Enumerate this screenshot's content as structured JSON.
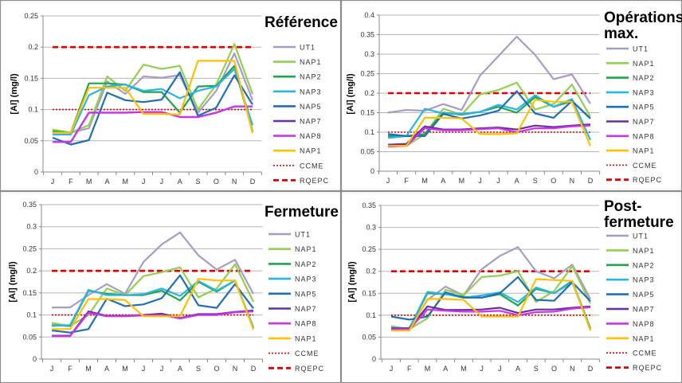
{
  "chart_data": [
    {
      "type": "line",
      "title": "Référence",
      "ylabel": "[Al] (mg/l)",
      "categories": [
        "J",
        "F",
        "M",
        "A",
        "M",
        "J",
        "J",
        "A",
        "S",
        "O",
        "N",
        "D"
      ],
      "ylim": [
        0,
        0.25
      ],
      "yticks": [
        "0",
        "0.05",
        "0.1",
        "0.15",
        "0.2",
        "0.25"
      ],
      "grid": true,
      "legend": "right",
      "series": [
        {
          "name": "UT1",
          "color": "#a99cc4",
          "values": [
            0.065,
            0.063,
            0.07,
            0.145,
            0.125,
            0.153,
            0.151,
            0.155,
            0.095,
            0.13,
            0.19,
            0.115
          ]
        },
        {
          "name": "NAP1",
          "color": "#92d050",
          "values": [
            0.068,
            0.063,
            0.075,
            0.153,
            0.13,
            0.172,
            0.165,
            0.17,
            0.1,
            0.14,
            0.205,
            0.125
          ]
        },
        {
          "name": "NAP2",
          "color": "#1fa64a",
          "values": [
            0.065,
            0.063,
            0.142,
            0.142,
            0.14,
            0.128,
            0.128,
            0.095,
            0.137,
            0.138,
            0.17,
            0.065
          ]
        },
        {
          "name": "NAP3",
          "color": "#29b5e8",
          "values": [
            0.06,
            0.06,
            0.123,
            0.137,
            0.14,
            0.13,
            0.133,
            0.118,
            0.13,
            0.137,
            0.165,
            0.075
          ]
        },
        {
          "name": "NAP5",
          "color": "#1f6fb4",
          "values": [
            0.055,
            0.044,
            0.051,
            0.127,
            0.115,
            0.112,
            0.116,
            0.16,
            0.09,
            0.103,
            0.155,
            0.108
          ]
        },
        {
          "name": "NAP7",
          "color": "#6a2fa0",
          "values": [
            0.048,
            0.048,
            0.095,
            0.095,
            0.095,
            0.096,
            0.096,
            0.088,
            0.088,
            0.095,
            0.105,
            0.105
          ]
        },
        {
          "name": "NAP8",
          "color": "#cc33ee",
          "values": [
            0.048,
            0.048,
            0.095,
            0.095,
            0.095,
            0.096,
            0.096,
            0.088,
            0.088,
            0.095,
            0.105,
            0.105
          ]
        },
        {
          "name": "NAP1",
          "color": "#ffc000",
          "values": [
            0.063,
            0.063,
            0.135,
            0.135,
            0.135,
            0.093,
            0.093,
            0.092,
            0.178,
            0.178,
            0.178,
            0.062
          ]
        }
      ],
      "reference_lines": [
        {
          "name": "CCME",
          "value": 0.1,
          "color": "#e00000",
          "style": "dotted"
        },
        {
          "name": "RQEPC",
          "value": 0.2,
          "color": "#e00000",
          "style": "dashed"
        }
      ]
    },
    {
      "type": "line",
      "title": "Opérations max.",
      "ylabel": "[Al] (mg/l)",
      "categories": [
        "J",
        "F",
        "M",
        "A",
        "M",
        "J",
        "J",
        "A",
        "S",
        "O",
        "N",
        "D"
      ],
      "ylim": [
        0,
        0.4
      ],
      "yticks": [
        "0",
        "0.05",
        "0.1",
        "0.15",
        "0.2",
        "0.25",
        "0.3",
        "0.35",
        "0.4"
      ],
      "grid": true,
      "legend": "right",
      "series": [
        {
          "name": "UT1",
          "color": "#a99cc4",
          "values": [
            0.15,
            0.157,
            0.155,
            0.172,
            0.157,
            0.245,
            0.295,
            0.345,
            0.298,
            0.236,
            0.248,
            0.173
          ]
        },
        {
          "name": "NAP1",
          "color": "#92d050",
          "values": [
            0.065,
            0.065,
            0.095,
            0.16,
            0.145,
            0.197,
            0.208,
            0.227,
            0.158,
            0.172,
            0.222,
            0.14
          ]
        },
        {
          "name": "NAP2",
          "color": "#1fa64a",
          "values": [
            0.09,
            0.09,
            0.095,
            0.15,
            0.145,
            0.152,
            0.165,
            0.15,
            0.19,
            0.165,
            0.18,
            0.135
          ]
        },
        {
          "name": "NAP3",
          "color": "#29b5e8",
          "values": [
            0.085,
            0.09,
            0.16,
            0.148,
            0.147,
            0.152,
            0.17,
            0.158,
            0.195,
            0.165,
            0.185,
            0.08
          ]
        },
        {
          "name": "NAP5",
          "color": "#1f6fb4",
          "values": [
            0.095,
            0.09,
            0.09,
            0.147,
            0.135,
            0.143,
            0.155,
            0.205,
            0.148,
            0.137,
            0.18,
            0.135
          ]
        },
        {
          "name": "NAP7",
          "color": "#6a2fa0",
          "values": [
            0.068,
            0.07,
            0.115,
            0.107,
            0.107,
            0.11,
            0.112,
            0.107,
            0.117,
            0.113,
            0.117,
            0.12
          ]
        },
        {
          "name": "NAP8",
          "color": "#cc33ee",
          "values": [
            0.063,
            0.065,
            0.11,
            0.105,
            0.105,
            0.108,
            0.11,
            0.1,
            0.11,
            0.11,
            0.115,
            0.117
          ]
        },
        {
          "name": "NAP1",
          "color": "#ffc000",
          "values": [
            0.065,
            0.065,
            0.137,
            0.137,
            0.135,
            0.095,
            0.095,
            0.097,
            0.183,
            0.178,
            0.178,
            0.065
          ]
        }
      ],
      "reference_lines": [
        {
          "name": "CCME",
          "value": 0.1,
          "color": "#e00000",
          "style": "dotted"
        },
        {
          "name": "RQEPC",
          "value": 0.2,
          "color": "#e00000",
          "style": "dashed"
        }
      ]
    },
    {
      "type": "line",
      "title": "Fermeture",
      "ylabel": "[Al] (mg/l)",
      "categories": [
        "J",
        "F",
        "M",
        "A",
        "M",
        "J",
        "J",
        "A",
        "S",
        "O",
        "N",
        "D"
      ],
      "ylim": [
        0,
        0.35
      ],
      "yticks": [
        "0",
        "0.05",
        "0.1",
        "0.15",
        "0.2",
        "0.25",
        "0.3",
        "0.35"
      ],
      "grid": true,
      "legend": "right",
      "series": [
        {
          "name": "UT1",
          "color": "#a99cc4",
          "values": [
            0.117,
            0.117,
            0.145,
            0.17,
            0.148,
            0.22,
            0.26,
            0.287,
            0.235,
            0.203,
            0.225,
            0.148
          ]
        },
        {
          "name": "NAP1",
          "color": "#92d050",
          "values": [
            0.082,
            0.075,
            0.1,
            0.16,
            0.145,
            0.188,
            0.197,
            0.208,
            0.14,
            0.16,
            0.215,
            0.13
          ]
        },
        {
          "name": "NAP2",
          "color": "#1fa64a",
          "values": [
            0.077,
            0.075,
            0.155,
            0.148,
            0.145,
            0.145,
            0.155,
            0.133,
            0.175,
            0.153,
            0.178,
            0.07
          ]
        },
        {
          "name": "NAP3",
          "color": "#29b5e8",
          "values": [
            0.075,
            0.077,
            0.157,
            0.145,
            0.145,
            0.147,
            0.16,
            0.143,
            0.177,
            0.155,
            0.178,
            0.072
          ]
        },
        {
          "name": "NAP5",
          "color": "#1f6fb4",
          "values": [
            0.065,
            0.06,
            0.068,
            0.137,
            0.12,
            0.124,
            0.138,
            0.19,
            0.122,
            0.116,
            0.17,
            0.115
          ]
        },
        {
          "name": "NAP7",
          "color": "#6a2fa0",
          "values": [
            0.053,
            0.053,
            0.108,
            0.098,
            0.098,
            0.1,
            0.103,
            0.093,
            0.102,
            0.102,
            0.107,
            0.11
          ]
        },
        {
          "name": "NAP8",
          "color": "#cc33ee",
          "values": [
            0.052,
            0.052,
            0.105,
            0.097,
            0.097,
            0.099,
            0.1,
            0.092,
            0.1,
            0.1,
            0.106,
            0.108
          ]
        },
        {
          "name": "NAP1",
          "color": "#ffc000",
          "values": [
            0.068,
            0.068,
            0.136,
            0.136,
            0.134,
            0.097,
            0.097,
            0.097,
            0.182,
            0.178,
            0.178,
            0.067
          ]
        }
      ],
      "reference_lines": [
        {
          "name": "CCME",
          "value": 0.1,
          "color": "#e00000",
          "style": "dotted"
        },
        {
          "name": "RQEPC",
          "value": 0.2,
          "color": "#e00000",
          "style": "dashed"
        }
      ]
    },
    {
      "type": "line",
      "title": "Post-fermeture",
      "ylabel": "[Al] (mg/l)",
      "categories": [
        "J",
        "F",
        "M",
        "A",
        "M",
        "J",
        "J",
        "A",
        "S",
        "O",
        "N",
        "D"
      ],
      "ylim": [
        0,
        0.35
      ],
      "yticks": [
        "0",
        "0.05",
        "0.1",
        "0.15",
        "0.2",
        "0.25",
        "0.3",
        "0.35"
      ],
      "grid": true,
      "legend": "right",
      "series": [
        {
          "name": "UT1",
          "color": "#a99cc4",
          "values": [
            0.07,
            0.07,
            0.135,
            0.165,
            0.145,
            0.205,
            0.235,
            0.255,
            0.2,
            0.184,
            0.215,
            0.137
          ]
        },
        {
          "name": "NAP1",
          "color": "#92d050",
          "values": [
            0.075,
            0.068,
            0.093,
            0.158,
            0.145,
            0.187,
            0.19,
            0.2,
            0.13,
            0.155,
            0.212,
            0.127
          ]
        },
        {
          "name": "NAP2",
          "color": "#1fa64a",
          "values": [
            0.07,
            0.07,
            0.15,
            0.148,
            0.142,
            0.14,
            0.148,
            0.122,
            0.16,
            0.15,
            0.178,
            0.07
          ]
        },
        {
          "name": "NAP3",
          "color": "#29b5e8",
          "values": [
            0.072,
            0.07,
            0.153,
            0.148,
            0.14,
            0.145,
            0.152,
            0.13,
            0.163,
            0.15,
            0.175,
            0.068
          ]
        },
        {
          "name": "NAP5",
          "color": "#1f6fb4",
          "values": [
            0.097,
            0.09,
            0.097,
            0.152,
            0.14,
            0.14,
            0.15,
            0.187,
            0.135,
            0.133,
            0.175,
            0.132
          ]
        },
        {
          "name": "NAP7",
          "color": "#6a2fa0",
          "values": [
            0.07,
            0.07,
            0.12,
            0.112,
            0.112,
            0.113,
            0.117,
            0.105,
            0.113,
            0.113,
            0.117,
            0.12
          ]
        },
        {
          "name": "NAP8",
          "color": "#cc33ee",
          "values": [
            0.068,
            0.068,
            0.113,
            0.11,
            0.108,
            0.108,
            0.11,
            0.1,
            0.107,
            0.108,
            0.115,
            0.118
          ]
        },
        {
          "name": "NAP1",
          "color": "#ffc000",
          "values": [
            0.065,
            0.065,
            0.137,
            0.137,
            0.135,
            0.097,
            0.097,
            0.097,
            0.182,
            0.18,
            0.178,
            0.065
          ]
        }
      ],
      "reference_lines": [
        {
          "name": "CCME",
          "value": 0.1,
          "color": "#e00000",
          "style": "dotted"
        },
        {
          "name": "RQEPC",
          "value": 0.2,
          "color": "#e00000",
          "style": "dashed"
        }
      ]
    }
  ]
}
